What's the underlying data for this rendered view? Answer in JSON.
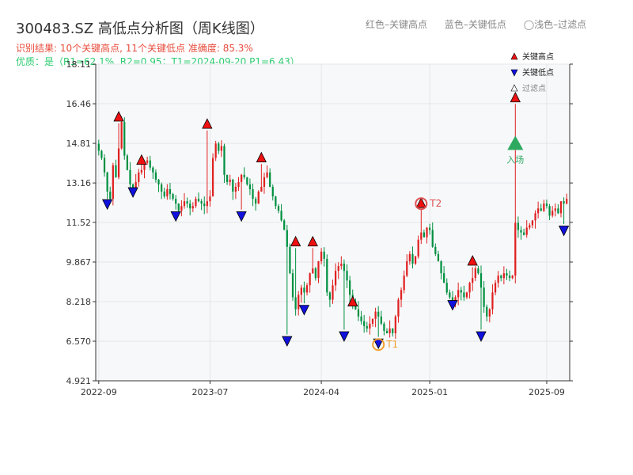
{
  "title": "300483.SZ 高低点分析图（周K线图）",
  "info_line1": "识别结果: 10个关键高点, 11个关键低点  准确度: 85.3%",
  "info_line2": "优质：是（R1=62.1%, R2=0.95；T1=2024-09-20 P1=6.43）",
  "top_legend": {
    "red": "红色–关键高点",
    "blue": "蓝色–关键低点",
    "hollow": "◯浅色–过滤点"
  },
  "legend": {
    "high": "关键高点",
    "low": "关键低点",
    "filtered": "过滤点"
  },
  "annotations": {
    "t1": "T1",
    "t2": "T2",
    "entry": "入场"
  },
  "colors": {
    "up": "#e02020",
    "down": "#009040",
    "high_marker": "#ee1111",
    "low_marker": "#1111dd",
    "t1_ring": "#f0a030",
    "t2_ring": "#e05050",
    "entry": "#2eaa60"
  },
  "chart_data": {
    "type": "candlestick",
    "period": "weekly",
    "ylim": [
      4.921,
      18.11
    ],
    "yticks": [
      4.921,
      6.57,
      8.218,
      9.867,
      11.52,
      13.16,
      14.81,
      16.46,
      18.11
    ],
    "ytick_labels": [
      "4.921",
      "6.570",
      "8.218",
      "9.867",
      "11.52",
      "13.16",
      "14.81",
      "16.46",
      "18.11"
    ],
    "xtick_labels": [
      "2022-09",
      "2023-07",
      "2024-04",
      "2025-01",
      "2025-09"
    ],
    "series_weekly_closes": [
      14.5,
      14.2,
      13.6,
      12.8,
      12.5,
      13.9,
      13.4,
      14.6,
      15.7,
      14.3,
      13.7,
      13.1,
      12.9,
      13.2,
      13.6,
      13.7,
      14.0,
      14.1,
      13.8,
      13.6,
      13.3,
      13.1,
      12.8,
      12.6,
      12.9,
      12.7,
      12.5,
      12.3,
      12.0,
      12.2,
      12.4,
      12.3,
      12.1,
      12.2,
      12.5,
      12.4,
      12.3,
      12.2,
      12.4,
      12.6,
      14.2,
      14.8,
      14.5,
      14.7,
      13.5,
      13.2,
      13.3,
      12.8,
      13.0,
      13.2,
      13.5,
      13.4,
      13.1,
      12.9,
      12.5,
      12.3,
      12.8,
      13.0,
      13.4,
      13.6,
      13.0,
      12.6,
      12.2,
      12.0,
      11.6,
      11.2,
      10.5,
      9.4,
      8.4,
      7.9,
      8.5,
      8.8,
      8.6,
      8.9,
      9.4,
      9.6,
      9.2,
      9.9,
      10.3,
      10.0,
      8.6,
      8.3,
      8.9,
      9.5,
      9.7,
      9.8,
      9.5,
      9.1,
      8.5,
      8.2,
      7.9,
      7.6,
      7.4,
      7.2,
      7.1,
      7.3,
      7.5,
      7.8,
      7.6,
      7.3,
      7.0,
      6.9,
      7.1,
      6.9,
      7.6,
      8.3,
      8.7,
      9.3,
      9.9,
      10.2,
      9.8,
      10.1,
      10.8,
      11.1,
      10.9,
      11.3,
      11.2,
      10.5,
      10.2,
      9.9,
      9.4,
      9.0,
      8.6,
      8.4,
      8.2,
      8.4,
      8.7,
      8.6,
      8.4,
      8.6,
      9.0,
      9.2,
      9.6,
      9.4,
      8.8,
      8.0,
      7.6,
      7.9,
      8.6,
      9.0,
      9.3,
      9.2,
      9.4,
      9.3,
      9.2,
      9.3,
      11.5,
      11.2,
      11.1,
      11.0,
      11.3,
      11.4,
      11.6,
      11.9,
      12.1,
      12.0,
      12.3,
      12.2,
      11.8,
      12.0,
      12.1,
      11.9,
      12.4,
      12.3,
      12.5
    ],
    "key_highs": [
      {
        "index": 7,
        "price": 15.9
      },
      {
        "index": 15,
        "price": 14.1
      },
      {
        "index": 38,
        "price": 15.6
      },
      {
        "index": 57,
        "price": 14.2
      },
      {
        "index": 69,
        "price": 10.7
      },
      {
        "index": 75,
        "price": 10.7
      },
      {
        "index": 89,
        "price": 8.2
      },
      {
        "index": 113,
        "price": 12.3
      },
      {
        "index": 131,
        "price": 9.9
      },
      {
        "index": 146,
        "price": 16.7
      }
    ],
    "key_lows": [
      {
        "index": 3,
        "price": 12.3
      },
      {
        "index": 12,
        "price": 12.8
      },
      {
        "index": 27,
        "price": 11.8
      },
      {
        "index": 50,
        "price": 11.8
      },
      {
        "index": 66,
        "price": 6.6
      },
      {
        "index": 72,
        "price": 7.9
      },
      {
        "index": 86,
        "price": 6.8
      },
      {
        "index": 98,
        "price": 6.5
      },
      {
        "index": 124,
        "price": 8.1
      },
      {
        "index": 134,
        "price": 6.8
      },
      {
        "index": 163,
        "price": 11.2
      }
    ],
    "t1": {
      "index": 98,
      "price": 6.43
    },
    "t2": {
      "index": 113,
      "price": 12.3
    },
    "entry": {
      "index": 146,
      "price": 14.8
    },
    "grid": true,
    "legend_position": "top-right"
  }
}
